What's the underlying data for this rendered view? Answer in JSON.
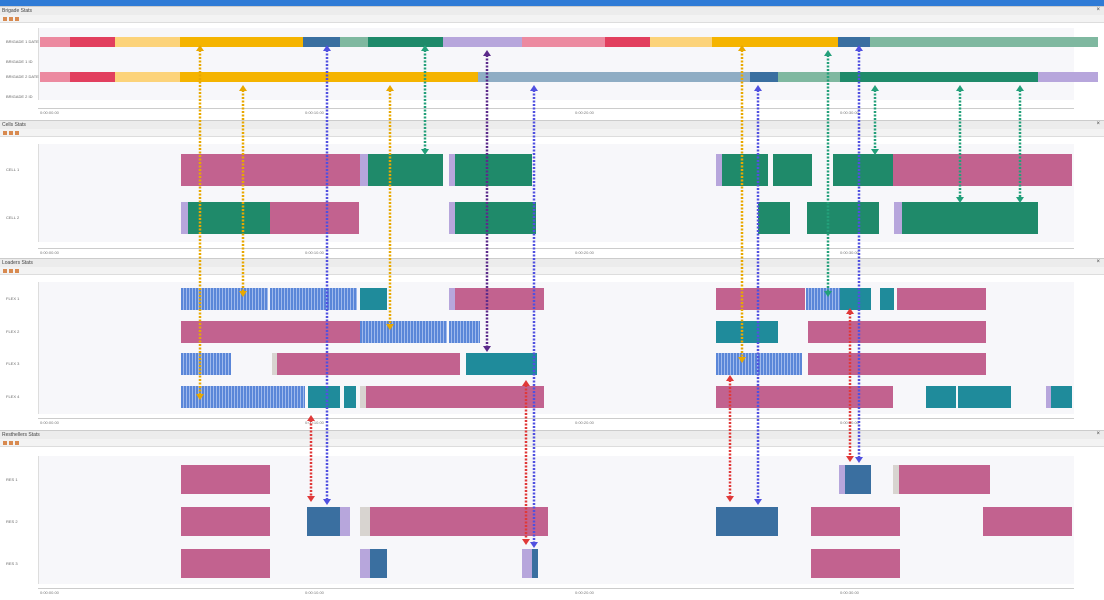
{
  "panels": [
    {
      "title": "Brigade Stats",
      "rows": [
        "BRIGADE 1 DATE",
        "BRIGADE 1 ID",
        "BRIGADE 2 DATE",
        "BRIGADE 2 ID"
      ]
    },
    {
      "title": "Cells Stats",
      "rows": [
        "CELL 1",
        "CELL 2"
      ]
    },
    {
      "title": "Loaders Stats",
      "rows": [
        "FLEX 1",
        "FLEX 2",
        "FLEX 3",
        "FLEX 4"
      ]
    },
    {
      "title": "Resthellers Stats",
      "rows": [
        "RES 1",
        "RES 2",
        "RES 3"
      ]
    }
  ],
  "axis_ticks": [
    "0:00:00.00",
    "0:00:10.00",
    "0:00:20.00",
    "0:00:30.00"
  ],
  "close_label": "×",
  "colors": {
    "pink": "#c2628f",
    "green": "#1f8a6a",
    "teal": "#1f8b9b",
    "steel": "#3a6fa0",
    "red": "#e23f5e",
    "yellow": "#f5b400",
    "lightyellow": "#fcd37a",
    "lavender": "#b7a6dc",
    "lightpink": "#ec8aa0",
    "greyblue": "#8fadc4",
    "lightgreen": "#7fb8a0",
    "grey": "#d8d4d0",
    "arrow_yellow": "#e8a800",
    "arrow_green": "#23a07a",
    "arrow_purple": "#5b2a8a",
    "arrow_blue": "#5050e0",
    "arrow_red": "#e03838"
  }
}
